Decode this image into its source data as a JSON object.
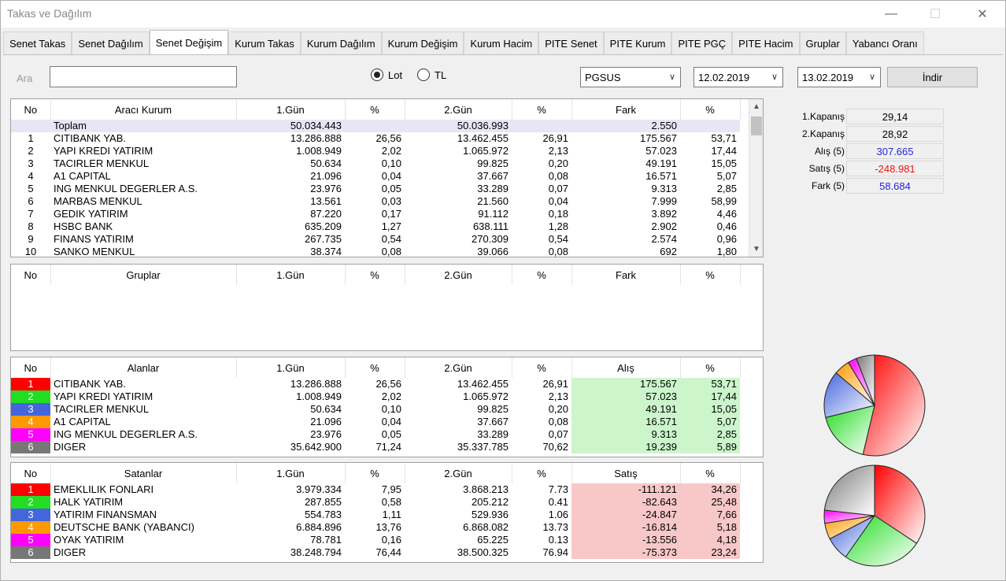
{
  "window": {
    "title": "Takas ve Dağılım",
    "minimize_glyph": "—",
    "maximize_glyph": "☐",
    "close_glyph": "✕"
  },
  "tabs": [
    "Senet Takas",
    "Senet Dağılım",
    "Senet Değişim",
    "Kurum Takas",
    "Kurum Dağılım",
    "Kurum Değişim",
    "Kurum Hacim",
    "PITE Senet",
    "PITE Kurum",
    "PITE PGÇ",
    "PITE Hacim",
    "Gruplar",
    "Yabancı Oranı"
  ],
  "active_tab": 2,
  "search": {
    "label": "Ara",
    "value": ""
  },
  "unit": {
    "lot": "Lot",
    "tl": "TL",
    "selected": "Lot"
  },
  "symbol": "PGSUS",
  "date1": "12.02.2019",
  "date2": "13.02.2019",
  "download_label": "İndir",
  "main_table": {
    "headers": [
      "No",
      "Aracı Kurum",
      "1.Gün",
      "%",
      "2.Gün",
      "%",
      "Fark",
      "%"
    ],
    "total": {
      "label": "Toplam",
      "d1": "50.034.443",
      "d2": "50.036.993",
      "fark": "2.550"
    },
    "rows": [
      [
        "1",
        "CITIBANK YAB.",
        "13.286.888",
        "26,56",
        "13.462.455",
        "26,91",
        "175.567",
        "53,71"
      ],
      [
        "2",
        "YAPI KREDI YATIRIM",
        "1.008.949",
        "2,02",
        "1.065.972",
        "2,13",
        "57.023",
        "17,44"
      ],
      [
        "3",
        "TACIRLER MENKUL",
        "50.634",
        "0,10",
        "99.825",
        "0,20",
        "49.191",
        "15,05"
      ],
      [
        "4",
        "A1 CAPITAL",
        "21.096",
        "0,04",
        "37.667",
        "0,08",
        "16.571",
        "5,07"
      ],
      [
        "5",
        "ING MENKUL DEGERLER A.S.",
        "23.976",
        "0,05",
        "33.289",
        "0,07",
        "9.313",
        "2,85"
      ],
      [
        "6",
        "MARBAS MENKUL",
        "13.561",
        "0,03",
        "21.560",
        "0,04",
        "7.999",
        "58,99"
      ],
      [
        "7",
        "GEDIK YATIRIM",
        "87.220",
        "0,17",
        "91.112",
        "0,18",
        "3.892",
        "4,46"
      ],
      [
        "8",
        "HSBC BANK",
        "635.209",
        "1,27",
        "638.111",
        "1,28",
        "2.902",
        "0,46"
      ],
      [
        "9",
        "FINANS YATIRIM",
        "267.735",
        "0,54",
        "270.309",
        "0,54",
        "2.574",
        "0,96"
      ],
      [
        "10",
        "SANKO MENKUL",
        "38.374",
        "0,08",
        "39.066",
        "0,08",
        "692",
        "1,80"
      ]
    ]
  },
  "groups_table": {
    "headers": [
      "No",
      "Gruplar",
      "1.Gün",
      "%",
      "2.Gün",
      "%",
      "Fark",
      "%"
    ]
  },
  "buyers_table": {
    "headers": [
      "No",
      "Alanlar",
      "1.Gün",
      "%",
      "2.Gün",
      "%",
      "Alış",
      "%"
    ],
    "rows": [
      [
        "1",
        "CITIBANK YAB.",
        "13.286.888",
        "26,56",
        "13.462.455",
        "26,91",
        "175.567",
        "53,71"
      ],
      [
        "2",
        "YAPI KREDI YATIRIM",
        "1.008.949",
        "2,02",
        "1.065.972",
        "2,13",
        "57.023",
        "17,44"
      ],
      [
        "3",
        "TACIRLER MENKUL",
        "50.634",
        "0,10",
        "99.825",
        "0,20",
        "49.191",
        "15,05"
      ],
      [
        "4",
        "A1 CAPITAL",
        "21.096",
        "0,04",
        "37.667",
        "0,08",
        "16.571",
        "5,07"
      ],
      [
        "5",
        "ING MENKUL DEGERLER A.S.",
        "23.976",
        "0,05",
        "33.289",
        "0,07",
        "9.313",
        "2,85"
      ],
      [
        "6",
        "DIGER",
        "35.642.900",
        "71,24",
        "35.337.785",
        "70,62",
        "19.239",
        "5,89"
      ]
    ]
  },
  "sellers_table": {
    "headers": [
      "No",
      "Satanlar",
      "1.Gün",
      "%",
      "2.Gün",
      "%",
      "Satış",
      "%"
    ],
    "rows": [
      [
        "1",
        "EMEKLILIK FONLARI",
        "3.979.334",
        "7,95",
        "3.868.213",
        "7.73",
        "-111.121",
        "34,26"
      ],
      [
        "2",
        "HALK YATIRIM",
        "287.855",
        "0,58",
        "205.212",
        "0.41",
        "-82.643",
        "25,48"
      ],
      [
        "3",
        "YATIRIM FINANSMAN",
        "554.783",
        "1,11",
        "529.936",
        "1.06",
        "-24.847",
        "7,66"
      ],
      [
        "4",
        "DEUTSCHE BANK (YABANCI)",
        "6.884.896",
        "13,76",
        "6.868.082",
        "13.73",
        "-16.814",
        "5,18"
      ],
      [
        "5",
        "OYAK YATIRIM",
        "78.781",
        "0,16",
        "65.225",
        "0.13",
        "-13.556",
        "4,18"
      ],
      [
        "6",
        "DIGER",
        "38.248.794",
        "76,44",
        "38.500.325",
        "76.94",
        "-75.373",
        "23,24"
      ]
    ]
  },
  "rank_colors": [
    "#ff0000",
    "#22dd22",
    "#4466dd",
    "#ff9900",
    "#ff00ff",
    "#777777"
  ],
  "summary": [
    {
      "label": "1.Kapanış",
      "value": "29,14",
      "color": "#000000"
    },
    {
      "label": "2.Kapanış",
      "value": "28,92",
      "color": "#000000"
    },
    {
      "label": "Alış (5)",
      "value": "307.665",
      "color": "#2222dd"
    },
    {
      "label": "Satış (5)",
      "value": "-248.981",
      "color": "#ee1111"
    },
    {
      "label": "Fark (5)",
      "value": "58.684",
      "color": "#2222dd"
    }
  ],
  "chart_data": [
    {
      "type": "pie",
      "title": "",
      "values": [
        53.71,
        17.44,
        15.05,
        5.07,
        2.85,
        5.89
      ]
    },
    {
      "type": "pie",
      "title": "",
      "values": [
        34.26,
        25.48,
        7.66,
        5.18,
        4.18,
        23.24
      ]
    }
  ]
}
